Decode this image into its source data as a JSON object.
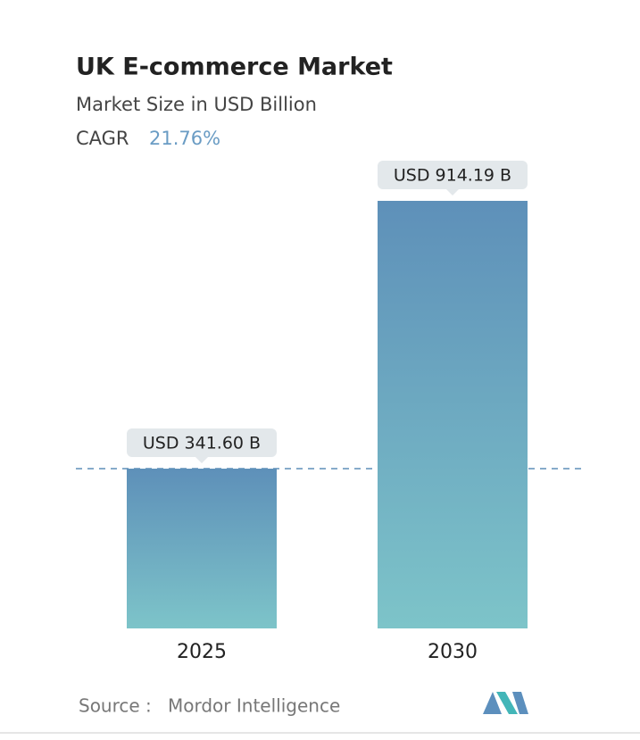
{
  "chart_data": {
    "type": "bar",
    "title": "UK E-commerce Market",
    "subtitle": "Market Size in USD Billion",
    "cagr_label": "CAGR",
    "cagr_value": "21.76%",
    "categories": [
      "2025",
      "2030"
    ],
    "values": [
      341.6,
      914.19
    ],
    "value_labels": [
      "USD 341.60 B",
      "USD 914.19 B"
    ],
    "color_top": "#5e90b9",
    "color_bottom": "#7dc4c9",
    "source_label": "Source :",
    "source": "Mordor Intelligence"
  }
}
